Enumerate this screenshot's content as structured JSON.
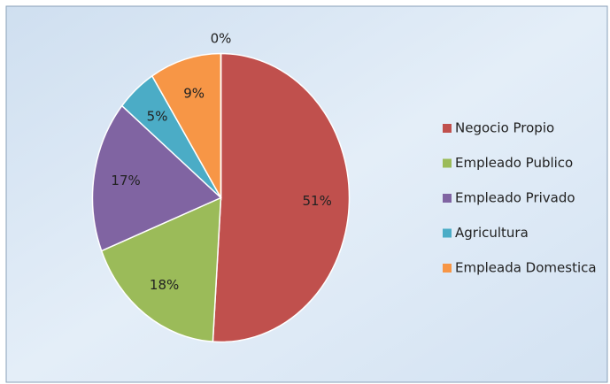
{
  "chart_data": {
    "type": "pie",
    "categories": [
      "Negocio Propio",
      "Empleado Publico",
      "Empleado Privado",
      "Agricultura",
      "Empleada Domestica",
      null
    ],
    "values": [
      51,
      18,
      17,
      5,
      9,
      0
    ],
    "value_labels": [
      "51%",
      "18%",
      "17%",
      "5%",
      "9%",
      "0%"
    ],
    "colors": [
      "#c0504d",
      "#9bbb59",
      "#8064a2",
      "#4bacc6",
      "#f79646",
      "#2c4d75"
    ],
    "legend": "right"
  }
}
